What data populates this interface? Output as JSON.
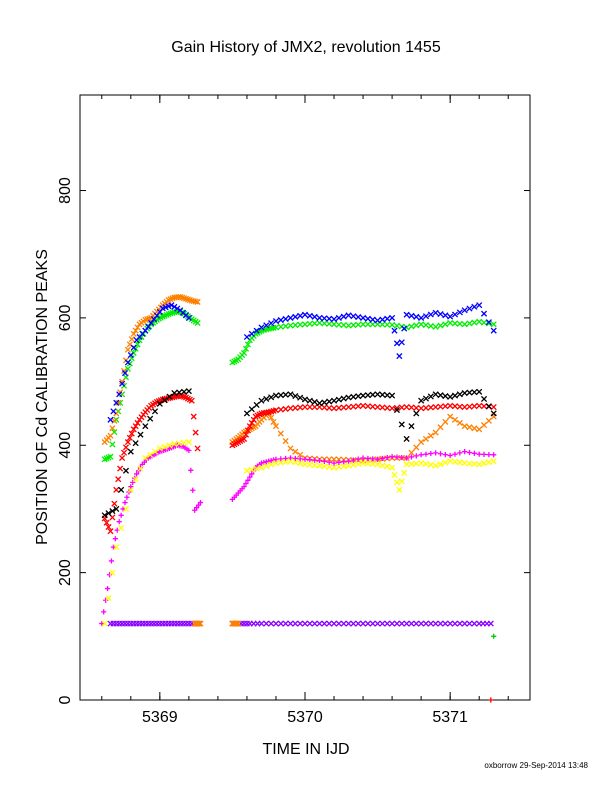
{
  "chart_data": {
    "type": "scatter",
    "title": "Gain History of JMX2, revolution 1455",
    "xlabel": "TIME IN IJD",
    "ylabel": "POSITION OF Cd CALIBRATION PEAKS",
    "xlim": [
      5368.45,
      5371.55
    ],
    "ylim": [
      0,
      950
    ],
    "xticks": [
      5369,
      5370,
      5371
    ],
    "yticks": [
      0,
      200,
      400,
      600,
      800
    ],
    "grid": false,
    "series": [
      {
        "color": "#00ee00",
        "marker": "x",
        "x": [
          5368.62,
          5368.66,
          5368.7,
          5368.74,
          5368.78,
          5368.82,
          5368.86,
          5368.9,
          5368.94,
          5368.98,
          5369.02,
          5369.06,
          5369.1,
          5369.14,
          5369.18,
          5369.22,
          5369.26,
          5369.5,
          5369.54,
          5369.58,
          5369.62,
          5369.66,
          5369.7,
          5369.75,
          5369.8,
          5369.9,
          5370.0,
          5370.1,
          5370.2,
          5370.3,
          5370.4,
          5370.5,
          5370.6,
          5370.7,
          5370.8,
          5370.9,
          5371.0,
          5371.1,
          5371.2,
          5371.3
        ],
        "y": [
          378,
          382,
          440,
          480,
          520,
          545,
          565,
          580,
          590,
          597,
          602,
          606,
          609,
          610,
          605,
          598,
          592,
          530,
          535,
          545,
          565,
          575,
          580,
          583,
          585,
          588,
          590,
          592,
          590,
          588,
          590,
          590,
          589,
          585,
          590,
          586,
          592,
          590,
          594,
          590
        ]
      },
      {
        "color": "#ff8000",
        "marker": "x",
        "x": [
          5368.62,
          5368.66,
          5368.7,
          5368.74,
          5368.78,
          5368.82,
          5368.86,
          5368.9,
          5368.94,
          5368.98,
          5369.02,
          5369.06,
          5369.1,
          5369.14,
          5369.18,
          5369.22,
          5369.26,
          5369.5,
          5369.54,
          5369.58,
          5369.62,
          5369.66,
          5369.7,
          5369.75,
          5369.8,
          5369.9,
          5370.0,
          5370.1,
          5370.2,
          5370.3,
          5370.4,
          5370.5,
          5370.6,
          5370.7,
          5370.8,
          5370.9,
          5371.0,
          5371.1,
          5371.2,
          5371.3
        ],
        "y": [
          405,
          415,
          450,
          500,
          550,
          575,
          590,
          597,
          600,
          610,
          620,
          628,
          632,
          633,
          630,
          627,
          625,
          405,
          412,
          420,
          425,
          430,
          440,
          450,
          430,
          395,
          380,
          378,
          378,
          377,
          376,
          378,
          380,
          380,
          405,
          420,
          445,
          430,
          425,
          445
        ]
      },
      {
        "color": "#ff0000",
        "marker": "x",
        "x": [
          5368.62,
          5368.66,
          5368.7,
          5368.74,
          5368.78,
          5368.82,
          5368.86,
          5368.9,
          5368.94,
          5368.98,
          5369.02,
          5369.06,
          5369.1,
          5369.14,
          5369.18,
          5369.22,
          5369.26,
          5369.5,
          5369.54,
          5369.58,
          5369.62,
          5369.66,
          5369.7,
          5369.75,
          5369.8,
          5369.9,
          5370.0,
          5370.1,
          5370.2,
          5370.3,
          5370.4,
          5370.5,
          5370.6,
          5370.7,
          5370.8,
          5370.9,
          5371.0,
          5371.1,
          5371.2,
          5371.3
        ],
        "y": [
          285,
          265,
          330,
          380,
          405,
          425,
          440,
          452,
          462,
          468,
          472,
          474,
          476,
          478,
          475,
          470,
          395,
          400,
          405,
          410,
          430,
          445,
          450,
          452,
          455,
          458,
          460,
          460,
          458,
          460,
          462,
          460,
          458,
          460,
          458,
          460,
          462,
          460,
          462,
          460
        ]
      },
      {
        "color": "#000000",
        "marker": "x",
        "x": [
          5368.62,
          5368.7,
          5368.8,
          5368.9,
          5369.0,
          5369.1,
          5369.2,
          5369.6,
          5369.7,
          5369.8,
          5369.9,
          5370.0,
          5370.1,
          5370.2,
          5370.3,
          5370.4,
          5370.5,
          5370.6,
          5370.7,
          5370.8,
          5370.9,
          5371.0,
          5371.1,
          5371.2,
          5371.3
        ],
        "y": [
          290,
          300,
          390,
          430,
          465,
          482,
          485,
          450,
          470,
          478,
          480,
          472,
          466,
          470,
          475,
          478,
          480,
          478,
          410,
          470,
          480,
          476,
          482,
          484,
          450
        ]
      },
      {
        "color": "#ff00ff",
        "marker": "+",
        "x": [
          5368.6,
          5368.64,
          5368.68,
          5368.72,
          5368.76,
          5368.8,
          5368.84,
          5368.88,
          5368.92,
          5368.96,
          5369.0,
          5369.04,
          5369.08,
          5369.12,
          5369.16,
          5369.2,
          5369.24,
          5369.28,
          5369.5,
          5369.54,
          5369.58,
          5369.62,
          5369.66,
          5369.7,
          5369.75,
          5369.8,
          5369.9,
          5370.0,
          5370.1,
          5370.2,
          5370.3,
          5370.4,
          5370.5,
          5370.6,
          5370.7,
          5370.8,
          5370.9,
          5371.0,
          5371.1,
          5371.2,
          5371.3
        ],
        "y": [
          120,
          175,
          240,
          280,
          310,
          335,
          355,
          370,
          380,
          385,
          390,
          393,
          396,
          400,
          398,
          392,
          298,
          310,
          315,
          325,
          335,
          350,
          365,
          372,
          375,
          378,
          380,
          378,
          376,
          372,
          375,
          380,
          378,
          382,
          380,
          385,
          388,
          384,
          390,
          386,
          385
        ]
      },
      {
        "color": "#ffff00",
        "marker": "x",
        "x": [
          5368.62,
          5368.7,
          5368.8,
          5368.9,
          5369.0,
          5369.1,
          5369.2,
          5369.6,
          5369.7,
          5369.8,
          5369.9,
          5370.0,
          5370.1,
          5370.2,
          5370.3,
          5370.4,
          5370.5,
          5370.6,
          5370.65,
          5370.7,
          5370.8,
          5370.9,
          5371.0,
          5371.1,
          5371.2,
          5371.3
        ],
        "y": [
          120,
          240,
          330,
          380,
          395,
          402,
          405,
          360,
          365,
          372,
          375,
          370,
          368,
          365,
          368,
          372,
          370,
          365,
          330,
          370,
          372,
          368,
          375,
          372,
          370,
          375
        ]
      },
      {
        "color": "#0000ff",
        "marker": "x",
        "x": [
          5368.66,
          5368.72,
          5368.78,
          5368.84,
          5368.9,
          5368.96,
          5369.02,
          5369.08,
          5369.14,
          5369.2,
          5369.6,
          5369.7,
          5369.8,
          5369.9,
          5370.0,
          5370.1,
          5370.2,
          5370.3,
          5370.4,
          5370.5,
          5370.6,
          5370.65,
          5370.7,
          5370.8,
          5370.9,
          5371.0,
          5371.1,
          5371.2,
          5371.3
        ],
        "y": [
          440,
          480,
          530,
          565,
          580,
          598,
          615,
          620,
          612,
          600,
          570,
          585,
          595,
          600,
          605,
          600,
          598,
          604,
          600,
          596,
          600,
          540,
          605,
          600,
          608,
          602,
          612,
          620,
          580
        ]
      },
      {
        "color": "#8800ff",
        "marker": "x",
        "x": [
          5368.66,
          5368.72,
          5368.78,
          5368.84,
          5368.9,
          5368.96,
          5369.02,
          5369.08,
          5369.14,
          5369.2,
          5369.26,
          5369.5,
          5369.56,
          5369.62,
          5369.7,
          5369.8,
          5369.9,
          5370.0,
          5370.1,
          5370.2,
          5370.3,
          5370.4,
          5370.5,
          5370.6,
          5370.7,
          5370.8,
          5370.9,
          5371.0,
          5371.1,
          5371.2,
          5371.28
        ],
        "y": [
          120,
          120,
          120,
          120,
          120,
          120,
          120,
          120,
          120,
          120,
          120,
          120,
          120,
          120,
          120,
          120,
          120,
          120,
          120,
          120,
          120,
          120,
          120,
          120,
          120,
          120,
          120,
          120,
          120,
          120,
          120
        ]
      },
      {
        "color": "#ff8000",
        "marker": "x",
        "x": [
          5369.24,
          5369.26,
          5369.28,
          5369.5,
          5369.52,
          5369.54
        ],
        "y": [
          120,
          120,
          120,
          120,
          120,
          120
        ]
      },
      {
        "color": "#00cc00",
        "marker": "+",
        "x": [
          5371.3
        ],
        "y": [
          100
        ]
      },
      {
        "color": "#ff0000",
        "marker": "+",
        "x": [
          5371.28
        ],
        "y": [
          0
        ]
      }
    ]
  },
  "footer": {
    "credit": "oxborrow 29-Sep-2014 13:48"
  }
}
